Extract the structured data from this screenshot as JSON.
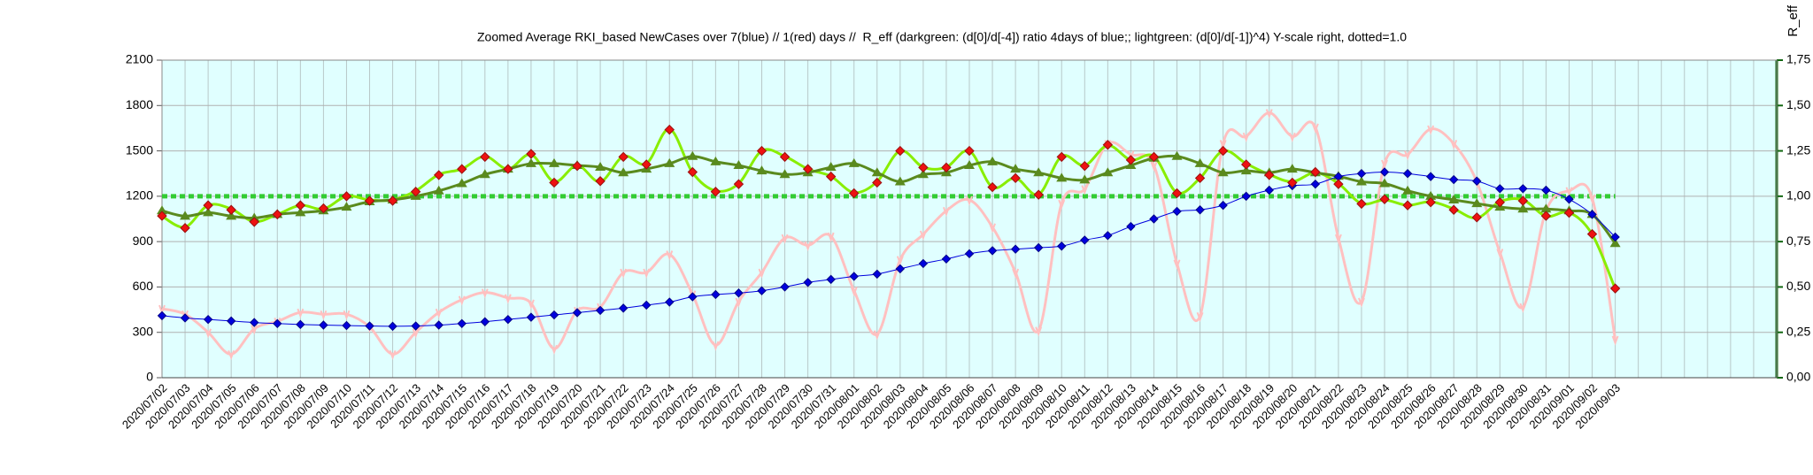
{
  "chart_data": {
    "type": "line",
    "title": "Zoomed Average RKI_based NewCases over 7(blue) // 1(red) days //  R_eff (darkgreen: (d[0]/d[-4]) ratio 4days of blue;; lightgreen: (d[0]/d[-1])^4) Y-scale right, dotted=1.0",
    "y2_label": "R_eff",
    "categories": [
      "2020/07/02",
      "2020/07/03",
      "2020/07/04",
      "2020/07/05",
      "2020/07/06",
      "2020/07/07",
      "2020/07/08",
      "2020/07/09",
      "2020/07/10",
      "2020/07/11",
      "2020/07/12",
      "2020/07/13",
      "2020/07/14",
      "2020/07/15",
      "2020/07/16",
      "2020/07/17",
      "2020/07/18",
      "2020/07/19",
      "2020/07/20",
      "2020/07/21",
      "2020/07/22",
      "2020/07/23",
      "2020/07/24",
      "2020/07/25",
      "2020/07/26",
      "2020/07/27",
      "2020/07/28",
      "2020/07/29",
      "2020/07/30",
      "2020/07/31",
      "2020/08/01",
      "2020/08/02",
      "2020/08/03",
      "2020/08/04",
      "2020/08/05",
      "2020/08/06",
      "2020/08/07",
      "2020/08/08",
      "2020/08/09",
      "2020/08/10",
      "2020/08/11",
      "2020/08/12",
      "2020/08/13",
      "2020/08/14",
      "2020/08/15",
      "2020/08/16",
      "2020/08/17",
      "2020/08/18",
      "2020/08/19",
      "2020/08/20",
      "2020/08/21",
      "2020/08/22",
      "2020/08/23",
      "2020/08/24",
      "2020/08/25",
      "2020/08/26",
      "2020/08/27",
      "2020/08/28",
      "2020/08/29",
      "2020/08/30",
      "2020/08/31",
      "2020/09/01",
      "2020/09/02",
      "2020/09/03",
      null,
      null,
      null,
      null,
      null,
      null,
      null
    ],
    "ylim": [
      0,
      2100
    ],
    "yticks": [
      0,
      300,
      600,
      900,
      1200,
      1500,
      1800,
      2100
    ],
    "y2lim": [
      0,
      1.75
    ],
    "y2ticks": [
      {
        "value": 0,
        "label": "0,00"
      },
      {
        "value": 0.25,
        "label": "0,25"
      },
      {
        "value": 0.5,
        "label": "0,50"
      },
      {
        "value": 0.75,
        "label": "0,75"
      },
      {
        "value": 1,
        "label": "1,00"
      },
      {
        "value": 1.25,
        "label": "1,25"
      },
      {
        "value": 1.5,
        "label": "1,50"
      },
      {
        "value": 1.75,
        "label": "1,75"
      }
    ],
    "grid": true,
    "background": "#e0ffff",
    "y2_reference_line": 1,
    "reference_color": "#33cc33",
    "series": [
      {
        "color": "#ffc0c0",
        "axis": "y2",
        "marker": "tick",
        "width": 3,
        "values": [
          0.38,
          0.35,
          0.25,
          0.13,
          0.27,
          0.31,
          0.36,
          0.35,
          0.35,
          0.28,
          0.13,
          0.25,
          0.36,
          0.43,
          0.47,
          0.44,
          0.41,
          0.16,
          0.37,
          0.39,
          0.58,
          0.58,
          0.68,
          0.46,
          0.18,
          0.42,
          0.58,
          0.77,
          0.73,
          0.78,
          0.48,
          0.24,
          0.65,
          0.79,
          0.92,
          0.98,
          0.83,
          0.58,
          0.26,
          0.96,
          1.04,
          1.29,
          1.23,
          1.17,
          0.63,
          0.34,
          1.29,
          1.33,
          1.46,
          1.33,
          1.38,
          0.77,
          0.42,
          1.18,
          1.23,
          1.37,
          1.29,
          1.08,
          0.69,
          0.39,
          0.92,
          1.03,
          0.99,
          0.21,
          null,
          null,
          null,
          null,
          null,
          null,
          null
        ]
      },
      {
        "color": "#88ee00",
        "axis": "y2",
        "marker": "none",
        "width": 3,
        "values": [
          0.89,
          0.83,
          0.95,
          0.93,
          0.86,
          0.9,
          0.95,
          0.93,
          1.0,
          0.98,
          0.98,
          1.03,
          1.12,
          1.15,
          1.22,
          1.15,
          1.23,
          1.08,
          1.17,
          1.08,
          1.22,
          1.18,
          1.37,
          1.13,
          1.03,
          1.07,
          1.25,
          1.22,
          1.15,
          1.11,
          1.02,
          1.08,
          1.25,
          1.16,
          1.16,
          1.25,
          1.05,
          1.1,
          1.01,
          1.22,
          1.17,
          1.28,
          1.2,
          1.22,
          1.02,
          1.1,
          1.25,
          1.18,
          1.12,
          1.08,
          1.13,
          1.07,
          0.96,
          0.98,
          0.95,
          0.97,
          0.93,
          0.88,
          0.97,
          0.98,
          0.89,
          0.91,
          0.79,
          0.49,
          null,
          null,
          null,
          null,
          null,
          null,
          null
        ]
      },
      {
        "color": "#5a8a1e",
        "axis": "y2",
        "marker": "triangle",
        "width": 3,
        "values": [
          0.92,
          0.89,
          0.91,
          0.89,
          0.88,
          0.9,
          0.91,
          0.92,
          0.94,
          0.97,
          0.98,
          1.0,
          1.03,
          1.07,
          1.12,
          1.15,
          1.18,
          1.18,
          1.17,
          1.16,
          1.13,
          1.15,
          1.18,
          1.22,
          1.19,
          1.17,
          1.14,
          1.12,
          1.13,
          1.16,
          1.18,
          1.13,
          1.08,
          1.12,
          1.13,
          1.17,
          1.19,
          1.15,
          1.13,
          1.1,
          1.09,
          1.13,
          1.17,
          1.21,
          1.22,
          1.18,
          1.13,
          1.14,
          1.13,
          1.15,
          1.13,
          1.11,
          1.08,
          1.07,
          1.03,
          1.0,
          0.98,
          0.96,
          0.94,
          0.93,
          0.93,
          0.92,
          0.9,
          0.74,
          null,
          null,
          null,
          null,
          null,
          null,
          null
        ]
      },
      {
        "color": "#0000dd",
        "axis": "y",
        "marker": "diamond",
        "width": 1,
        "values": [
          410,
          395,
          385,
          375,
          365,
          358,
          352,
          348,
          345,
          342,
          340,
          342,
          348,
          358,
          370,
          385,
          400,
          415,
          430,
          445,
          460,
          480,
          500,
          535,
          550,
          560,
          575,
          600,
          630,
          650,
          670,
          685,
          720,
          755,
          785,
          820,
          840,
          850,
          860,
          870,
          910,
          940,
          1000,
          1050,
          1100,
          1110,
          1140,
          1200,
          1240,
          1270,
          1280,
          1330,
          1350,
          1360,
          1350,
          1330,
          1310,
          1300,
          1250,
          1250,
          1240,
          1180,
          1080,
          930,
          null,
          null,
          null,
          null,
          null,
          null,
          null
        ]
      },
      {
        "color": "#ee1111",
        "axis": "y",
        "marker": "diamond",
        "width": 0,
        "values": [
          1070,
          990,
          1140,
          1110,
          1030,
          1080,
          1140,
          1120,
          1200,
          1170,
          1170,
          1230,
          1340,
          1380,
          1460,
          1380,
          1480,
          1290,
          1400,
          1300,
          1460,
          1410,
          1640,
          1360,
          1230,
          1280,
          1500,
          1460,
          1380,
          1330,
          1220,
          1290,
          1500,
          1390,
          1390,
          1500,
          1260,
          1320,
          1210,
          1460,
          1400,
          1540,
          1440,
          1460,
          1220,
          1320,
          1500,
          1410,
          1340,
          1290,
          1360,
          1280,
          1150,
          1180,
          1140,
          1160,
          1110,
          1060,
          1160,
          1170,
          1070,
          1090,
          950,
          590,
          null,
          null,
          null,
          null,
          null,
          null,
          null
        ]
      }
    ]
  }
}
